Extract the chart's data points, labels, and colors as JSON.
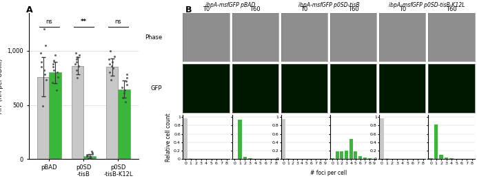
{
  "panel_A": {
    "groups": [
      "pBAD",
      "p0SD\n-tisB",
      "p0SD\n-tisB-K12L"
    ],
    "T0_means": [
      760,
      860,
      850
    ],
    "T60_means": [
      800,
      30,
      645
    ],
    "T0_color": "#c8c8c8",
    "T60_color": "#3ab73a",
    "bar_width": 0.35,
    "ylim": [
      0,
      1350
    ],
    "yticks": [
      0,
      500,
      1000
    ],
    "yticklabels": [
      "0",
      "500",
      "1,000"
    ],
    "ylabel": "ATP (nM per OD₆₀₀)",
    "significance": [
      "ns",
      "**",
      "ns"
    ],
    "T0_scatter": [
      [
        490,
        730,
        780,
        820,
        850,
        900,
        980,
        1050,
        1200
      ],
      [
        750,
        820,
        860,
        880,
        900,
        920,
        940,
        960,
        980
      ],
      [
        730,
        800,
        840,
        860,
        880,
        900,
        920,
        950,
        1000
      ]
    ],
    "T60_scatter": [
      [
        640,
        710,
        760,
        800,
        820,
        850,
        880,
        910,
        960
      ],
      [
        10,
        20,
        25,
        30,
        35,
        40,
        50,
        60,
        70
      ],
      [
        530,
        570,
        610,
        640,
        660,
        690,
        720,
        750,
        780
      ]
    ],
    "T0_err": [
      180,
      80,
      80
    ],
    "T60_err": [
      100,
      20,
      80
    ]
  },
  "panel_B": {
    "col_titles": [
      "ibpA-msfGFP pBAD",
      "ibpA-msfGFP p0SD-tisB",
      "ibpA-msfGFP p0SD-tisB-K12L"
    ],
    "col_titles_italic": [
      "ibpA-msfGFP",
      "ibpA-msfGFP",
      "ibpA-msfGFP"
    ],
    "col_titles_normal": [
      " pBAD",
      " p0SD-tisB",
      " p0SD-tisB-K12L"
    ],
    "row_labels": [
      "Phase",
      "GFP"
    ],
    "time_labels": [
      "T0",
      "T60"
    ],
    "hist_xlabel": "# foci per cell",
    "hist_ylabel": "Relative cell count",
    "hist_yticks": [
      0,
      0.2,
      0.4,
      0.6,
      0.8,
      1
    ],
    "hist_data": {
      "pBAD_T0": [
        0.97,
        0.02,
        0.005,
        0.002,
        0.001,
        0.001,
        0.001,
        0.001,
        0.001
      ],
      "pBAD_T60": [
        0.01,
        0.93,
        0.05,
        0.02,
        0.005,
        0.002,
        0.001,
        0.001,
        0.001
      ],
      "tisB_T0": [
        0.95,
        0.03,
        0.01,
        0.005,
        0.003,
        0.002,
        0.001,
        0.001,
        0.001,
        0.001
      ],
      "tisB_T60": [
        0.02,
        0.18,
        0.18,
        0.2,
        0.48,
        0.18,
        0.08,
        0.04,
        0.02,
        0.01
      ],
      "K12L_T0": [
        0.97,
        0.02,
        0.005,
        0.002,
        0.001,
        0.001,
        0.001,
        0.001,
        0.001
      ],
      "K12L_T60": [
        0.02,
        0.83,
        0.1,
        0.04,
        0.02,
        0.01,
        0.005,
        0.002,
        0.001
      ]
    },
    "T0_bar_color": "#c8c8c8",
    "T60_bar_color": "#3ab73a",
    "phase_color": "#8e8e8e",
    "gfp_color": "#001800"
  }
}
